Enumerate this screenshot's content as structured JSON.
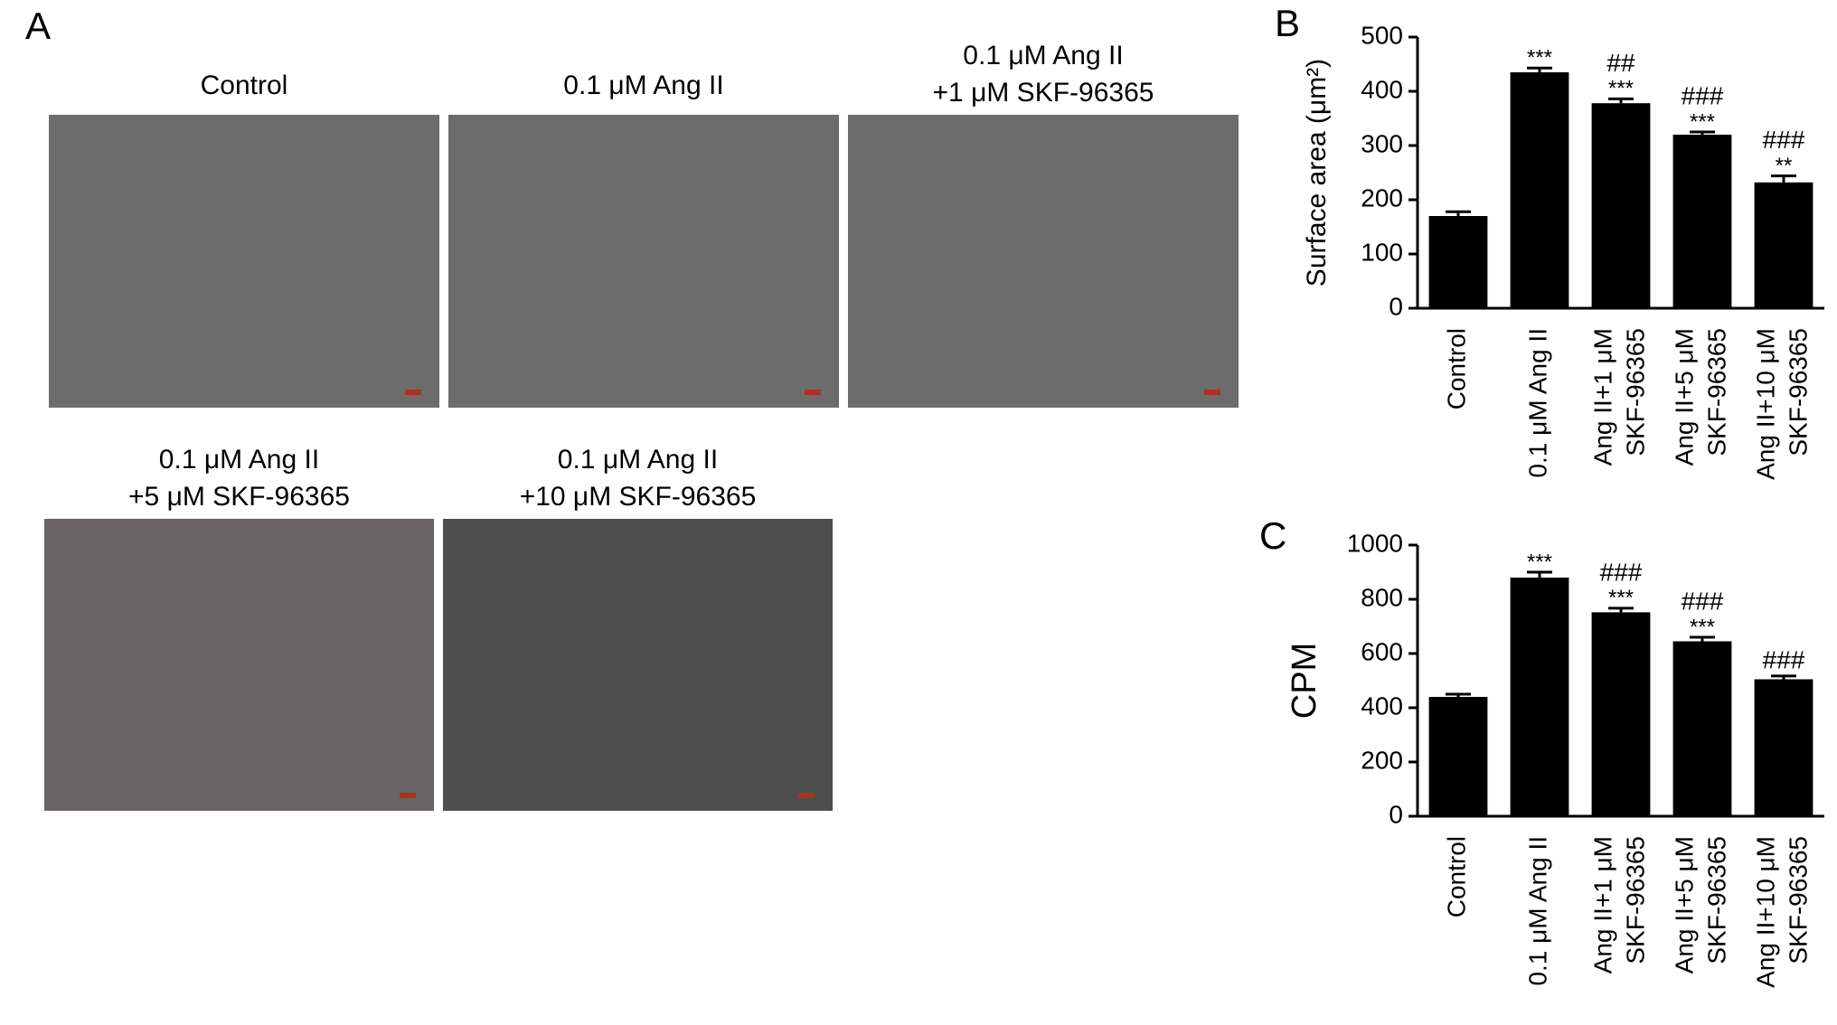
{
  "panel_labels": [
    "A",
    "B",
    "C"
  ],
  "micrographs": [
    {
      "title": [
        "Control"
      ]
    },
    {
      "title": [
        "0.1 μM Ang II"
      ]
    },
    {
      "title": [
        "0.1 μM Ang II",
        "+1 μM SKF-96365"
      ]
    },
    {
      "title": [
        "0.1 μM Ang II",
        "+5 μM SKF-96365"
      ]
    },
    {
      "title": [
        "0.1 μM Ang II",
        "+10 μM SKF-96365"
      ]
    }
  ],
  "chart_data": [
    {
      "type": "bar",
      "y_label": "Surface area (μm²)",
      "categories": [
        [
          "Control"
        ],
        [
          "0.1 μM Ang II"
        ],
        [
          "Ang II+1 μM",
          "SKF-96365"
        ],
        [
          "Ang II+5 μM",
          "SKF-96365"
        ],
        [
          "Ang II+10 μM",
          "SKF-96365"
        ]
      ],
      "values": [
        170,
        435,
        378,
        320,
        232
      ],
      "errors": [
        8,
        8,
        8,
        5,
        12
      ],
      "stars": [
        null,
        "***",
        "***",
        "***",
        "**"
      ],
      "hashes": [
        null,
        null,
        "##",
        "###",
        "###"
      ],
      "color": "#000000",
      "ylim": [
        0,
        500
      ],
      "yticks": [
        0,
        100,
        200,
        300,
        400,
        500
      ]
    },
    {
      "type": "bar",
      "y_label": "CPM",
      "categories": [
        [
          "Control"
        ],
        [
          "0.1 μM Ang II"
        ],
        [
          "Ang II+1 μM",
          "SKF-96365"
        ],
        [
          "Ang II+5 μM",
          "SKF-96365"
        ],
        [
          "Ang II+10 μM",
          "SKF-96365"
        ]
      ],
      "values": [
        440,
        880,
        752,
        645,
        505
      ],
      "errors": [
        10,
        20,
        15,
        15,
        12
      ],
      "stars": [
        null,
        "***",
        "***",
        "***",
        null
      ],
      "hashes": [
        null,
        null,
        "###",
        "###",
        "###"
      ],
      "color": "#000000",
      "ylim": [
        0,
        1000
      ],
      "yticks": [
        0,
        200,
        400,
        600,
        800,
        1000
      ]
    }
  ]
}
